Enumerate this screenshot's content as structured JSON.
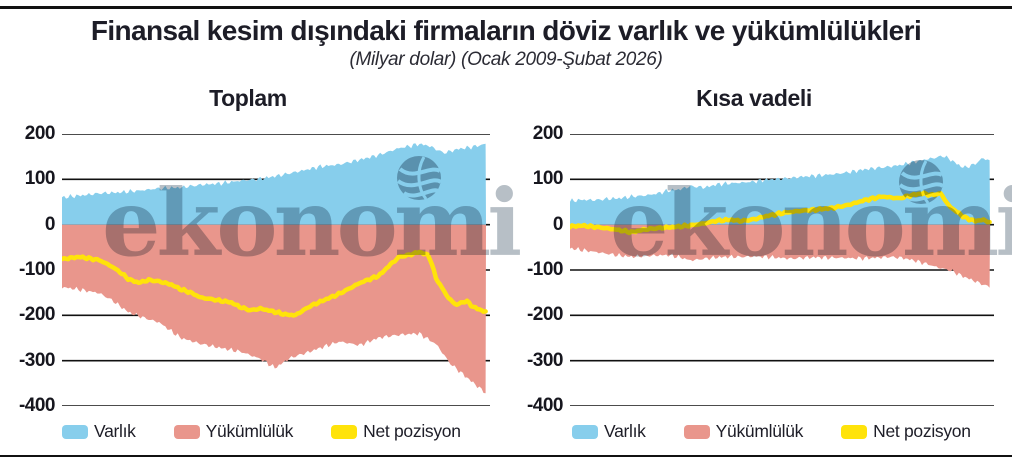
{
  "header": {
    "title": "Finansal kesim dışındaki firmaların döviz varlık ve yükümlülükleri",
    "subtitle": "(Milyar dolar) (Ocak 2009-Şubat 2026)"
  },
  "watermark": {
    "text": "ekonomi"
  },
  "colors": {
    "assets": "#87CEEC",
    "liabilities": "#E9968C",
    "net": "#FFE30A",
    "grid": "#111111",
    "text": "#1d1d27",
    "watermark": "#b7bfc6"
  },
  "legend": [
    {
      "label": "Varlık",
      "series": "assets"
    },
    {
      "label": "Yükümlülük",
      "series": "liabilities"
    },
    {
      "label": "Net pozisyon",
      "series": "net"
    }
  ],
  "chart_data": [
    {
      "type": "area",
      "title": "Toplam",
      "x_unit": "year (monthly data, Ocak 2009 - Şubat 2026)",
      "x_range": [
        2009.0,
        2026.1
      ],
      "ylim": [
        -400,
        200
      ],
      "yticks": [
        200,
        100,
        0,
        -100,
        -200,
        -300,
        -400
      ],
      "grid": true,
      "legend_position": "bottom",
      "series": [
        {
          "name": "Varlık",
          "type": "area",
          "color_key": "assets",
          "points": [
            [
              2009.0,
              60
            ],
            [
              2009.7,
              64
            ],
            [
              2010.5,
              69
            ],
            [
              2011.3,
              71
            ],
            [
              2012.1,
              75
            ],
            [
              2012.9,
              80
            ],
            [
              2013.8,
              82
            ],
            [
              2014.6,
              88
            ],
            [
              2015.4,
              91
            ],
            [
              2016.2,
              97
            ],
            [
              2017.0,
              101
            ],
            [
              2017.8,
              109
            ],
            [
              2018.6,
              118
            ],
            [
              2019.4,
              128
            ],
            [
              2020.2,
              133
            ],
            [
              2021.0,
              143
            ],
            [
              2021.8,
              154
            ],
            [
              2022.6,
              169
            ],
            [
              2023.0,
              173
            ],
            [
              2023.4,
              178
            ],
            [
              2023.8,
              174
            ],
            [
              2024.4,
              158
            ],
            [
              2025.0,
              167
            ],
            [
              2025.5,
              171
            ],
            [
              2026.1,
              178
            ]
          ]
        },
        {
          "name": "Yükümlülük",
          "type": "area",
          "color_key": "liabilities",
          "points": [
            [
              2009.0,
              -138
            ],
            [
              2009.7,
              -143
            ],
            [
              2010.5,
              -151
            ],
            [
              2011.0,
              -166
            ],
            [
              2011.7,
              -194
            ],
            [
              2012.5,
              -209
            ],
            [
              2012.9,
              -215
            ],
            [
              2013.8,
              -250
            ],
            [
              2014.6,
              -263
            ],
            [
              2015.4,
              -272
            ],
            [
              2016.2,
              -280
            ],
            [
              2017.0,
              -296
            ],
            [
              2017.6,
              -316
            ],
            [
              2018.2,
              -294
            ],
            [
              2019.0,
              -280
            ],
            [
              2019.4,
              -272
            ],
            [
              2020.2,
              -258
            ],
            [
              2021.0,
              -266
            ],
            [
              2021.8,
              -249
            ],
            [
              2022.6,
              -243
            ],
            [
              2023.4,
              -240
            ],
            [
              2024.1,
              -264
            ],
            [
              2024.65,
              -306
            ],
            [
              2025.3,
              -336
            ],
            [
              2026.1,
              -372
            ]
          ]
        },
        {
          "name": "Net pozisyon",
          "type": "line",
          "color_key": "net",
          "points": [
            [
              2009.0,
              -76
            ],
            [
              2009.7,
              -71
            ],
            [
              2010.5,
              -78
            ],
            [
              2011.0,
              -92
            ],
            [
              2011.3,
              -103
            ],
            [
              2011.7,
              -121
            ],
            [
              2012.1,
              -128
            ],
            [
              2012.5,
              -122
            ],
            [
              2012.9,
              -125
            ],
            [
              2013.4,
              -132
            ],
            [
              2013.8,
              -143
            ],
            [
              2014.2,
              -150
            ],
            [
              2014.6,
              -161
            ],
            [
              2015.0,
              -164
            ],
            [
              2015.4,
              -168
            ],
            [
              2015.8,
              -171
            ],
            [
              2016.2,
              -182
            ],
            [
              2016.6,
              -189
            ],
            [
              2017.0,
              -185
            ],
            [
              2017.4,
              -190
            ],
            [
              2018.0,
              -198
            ],
            [
              2018.4,
              -200
            ],
            [
              2019.0,
              -180
            ],
            [
              2019.5,
              -168
            ],
            [
              2020.2,
              -152
            ],
            [
              2021.0,
              -129
            ],
            [
              2021.8,
              -112
            ],
            [
              2022.2,
              -90
            ],
            [
              2022.6,
              -71
            ],
            [
              2023.0,
              -67
            ],
            [
              2023.4,
              -60
            ],
            [
              2023.8,
              -68
            ],
            [
              2024.1,
              -120
            ],
            [
              2024.6,
              -163
            ],
            [
              2024.9,
              -177
            ],
            [
              2025.3,
              -168
            ],
            [
              2025.6,
              -182
            ],
            [
              2026.1,
              -193
            ]
          ]
        }
      ]
    },
    {
      "type": "area",
      "title": "Kısa vadeli",
      "x_unit": "year (monthly data, Ocak 2009 - Şubat 2026)",
      "x_range": [
        2009.0,
        2026.1
      ],
      "ylim": [
        -400,
        200
      ],
      "yticks": [
        200,
        100,
        0,
        -100,
        -200,
        -300,
        -400
      ],
      "grid": true,
      "legend_position": "bottom",
      "series": [
        {
          "name": "Varlık",
          "type": "area",
          "color_key": "assets",
          "points": [
            [
              2009.0,
              52
            ],
            [
              2009.5,
              55
            ],
            [
              2010.0,
              54
            ],
            [
              2010.5,
              57
            ],
            [
              2011.0,
              58
            ],
            [
              2011.5,
              62
            ],
            [
              2012.0,
              64
            ],
            [
              2012.5,
              68
            ],
            [
              2013.0,
              75
            ],
            [
              2013.5,
              78
            ],
            [
              2013.9,
              85
            ],
            [
              2014.5,
              82
            ],
            [
              2015.0,
              89
            ],
            [
              2015.5,
              91
            ],
            [
              2016.0,
              93
            ],
            [
              2016.5,
              95
            ],
            [
              2017.0,
              99
            ],
            [
              2017.5,
              101
            ],
            [
              2018.0,
              103
            ],
            [
              2018.5,
              106
            ],
            [
              2019.0,
              108
            ],
            [
              2019.5,
              110
            ],
            [
              2020.0,
              113
            ],
            [
              2020.5,
              117
            ],
            [
              2021.0,
              122
            ],
            [
              2021.5,
              125
            ],
            [
              2022.0,
              128
            ],
            [
              2022.5,
              132
            ],
            [
              2023.0,
              138
            ],
            [
              2023.5,
              144
            ],
            [
              2023.9,
              148
            ],
            [
              2024.2,
              152
            ],
            [
              2024.5,
              143
            ],
            [
              2024.9,
              129
            ],
            [
              2025.1,
              126
            ],
            [
              2025.5,
              134
            ],
            [
              2025.8,
              147
            ],
            [
              2026.1,
              141
            ]
          ]
        },
        {
          "name": "Yükümlülük",
          "type": "area",
          "color_key": "liabilities",
          "points": [
            [
              2009.0,
              -52
            ],
            [
              2009.5,
              -56
            ],
            [
              2010.0,
              -60
            ],
            [
              2010.5,
              -64
            ],
            [
              2011.0,
              -68
            ],
            [
              2011.5,
              -71
            ],
            [
              2012.0,
              -69
            ],
            [
              2012.5,
              -68
            ],
            [
              2013.0,
              -67
            ],
            [
              2013.5,
              -72
            ],
            [
              2013.9,
              -79
            ],
            [
              2014.5,
              -75
            ],
            [
              2015.0,
              -72
            ],
            [
              2015.5,
              -71
            ],
            [
              2016.0,
              -71
            ],
            [
              2016.5,
              -70
            ],
            [
              2017.0,
              -71
            ],
            [
              2017.5,
              -73
            ],
            [
              2018.0,
              -75
            ],
            [
              2018.5,
              -73
            ],
            [
              2019.0,
              -72
            ],
            [
              2019.5,
              -73
            ],
            [
              2020.0,
              -73
            ],
            [
              2020.5,
              -74
            ],
            [
              2021.0,
              -74
            ],
            [
              2021.5,
              -73
            ],
            [
              2022.0,
              -71
            ],
            [
              2022.5,
              -73
            ],
            [
              2023.0,
              -79
            ],
            [
              2023.5,
              -86
            ],
            [
              2024.0,
              -95
            ],
            [
              2024.5,
              -101
            ],
            [
              2025.0,
              -114
            ],
            [
              2025.5,
              -125
            ],
            [
              2026.1,
              -138
            ]
          ]
        },
        {
          "name": "Net pozisyon",
          "type": "line",
          "color_key": "net",
          "points": [
            [
              2009.0,
              -4
            ],
            [
              2009.5,
              -2
            ],
            [
              2010.0,
              -5
            ],
            [
              2010.5,
              -8
            ],
            [
              2011.0,
              -12
            ],
            [
              2011.5,
              -17
            ],
            [
              2012.0,
              -11
            ],
            [
              2012.5,
              -8
            ],
            [
              2013.0,
              -6
            ],
            [
              2013.5,
              -4
            ],
            [
              2014.0,
              -1
            ],
            [
              2014.5,
              3
            ],
            [
              2014.9,
              8
            ],
            [
              2015.5,
              11
            ],
            [
              2016.0,
              8
            ],
            [
              2016.5,
              12
            ],
            [
              2017.0,
              19
            ],
            [
              2017.7,
              26
            ],
            [
              2018.3,
              30
            ],
            [
              2019.0,
              33
            ],
            [
              2019.7,
              37
            ],
            [
              2020.3,
              43
            ],
            [
              2021.0,
              54
            ],
            [
              2021.7,
              62
            ],
            [
              2022.4,
              58
            ],
            [
              2023.0,
              66
            ],
            [
              2023.4,
              69
            ],
            [
              2023.7,
              65
            ],
            [
              2024.1,
              69
            ],
            [
              2024.4,
              43
            ],
            [
              2024.8,
              26
            ],
            [
              2025.1,
              15
            ],
            [
              2025.5,
              8
            ],
            [
              2025.8,
              11
            ],
            [
              2026.1,
              5
            ]
          ]
        }
      ]
    }
  ]
}
